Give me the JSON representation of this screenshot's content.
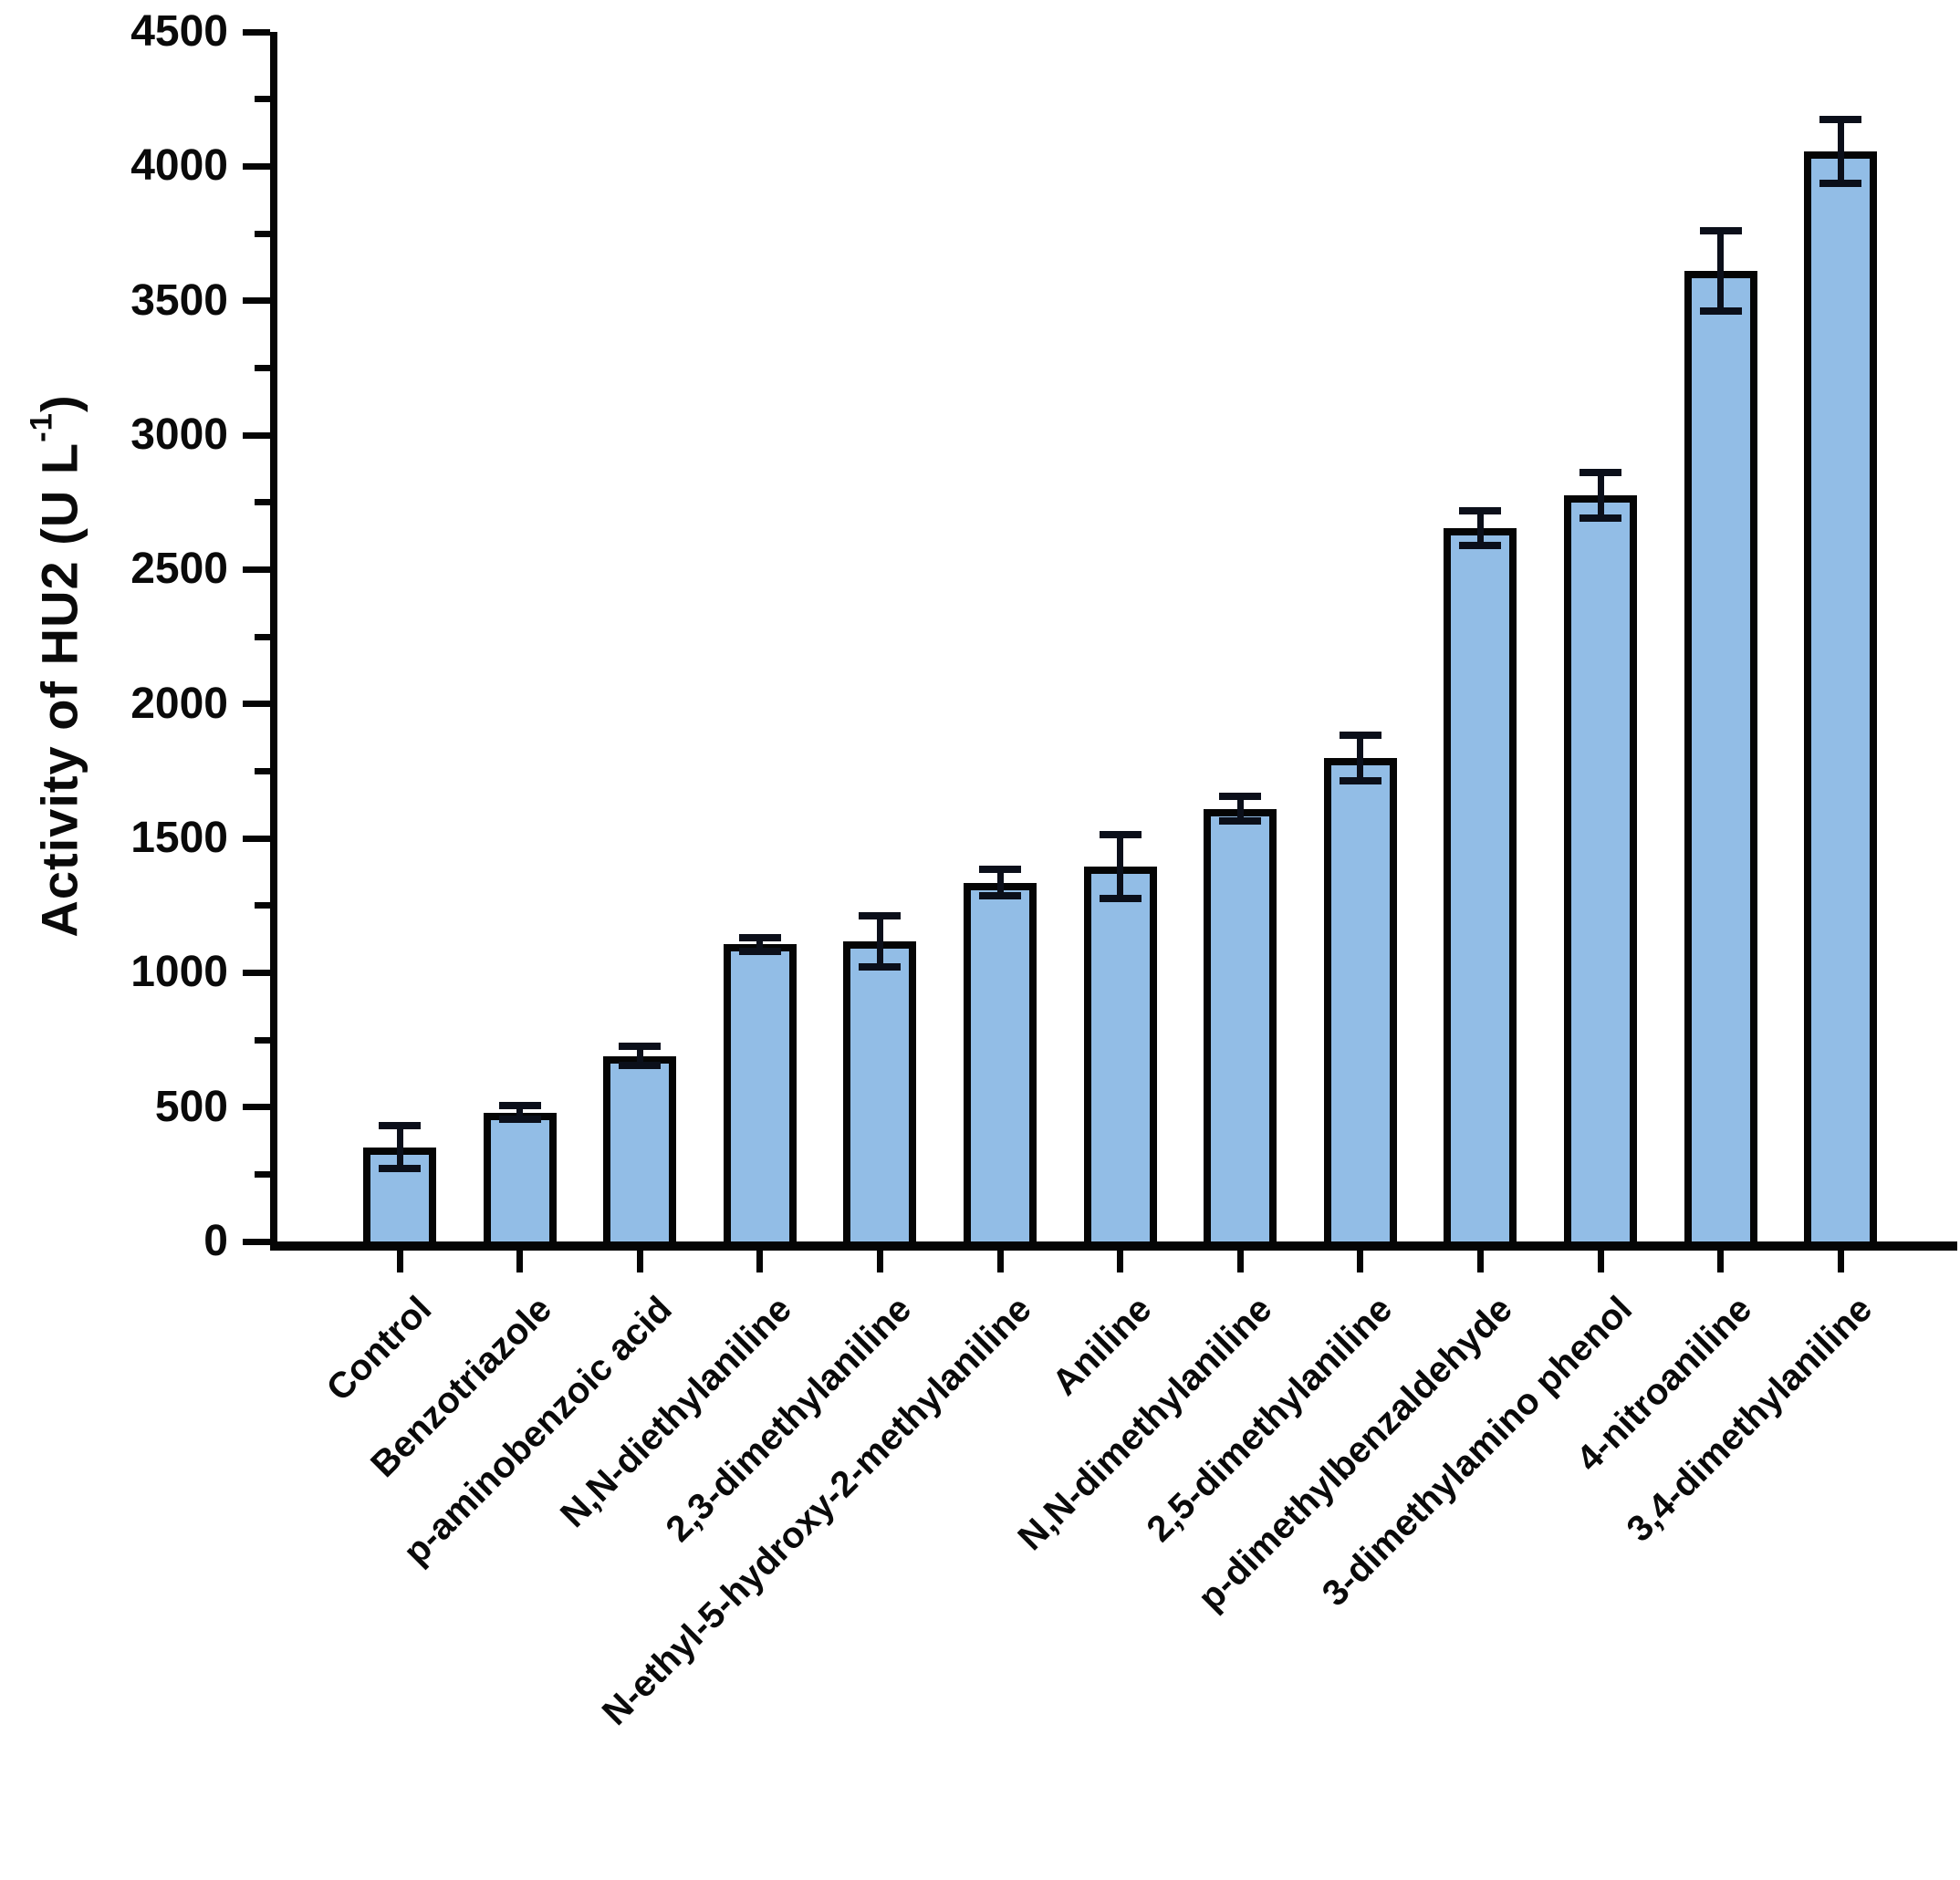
{
  "chart_data": {
    "type": "bar",
    "title": "",
    "xlabel": "",
    "ylabel": "Activity of HU2 (U L⁻¹)",
    "ylabel_parts": {
      "pre": "Activity of HU2 (U L",
      "sup": "-1",
      "post": ")"
    },
    "ylim": [
      0,
      4500
    ],
    "ytick_major_step": 500,
    "ytick_minor_step": 250,
    "ytick_labels": [
      "0",
      "500",
      "1000",
      "1500",
      "2000",
      "2500",
      "3000",
      "3500",
      "4000",
      "4500"
    ],
    "grid": false,
    "legend": null,
    "bar_color": "#92BDE6",
    "bar_border_color": "#050505",
    "error_bar_color": "#0b0f1a",
    "categories": [
      "Control",
      "Benzotriazole",
      "p-aminobenzoic acid",
      "N,N-diethylaniline",
      "2,3-dimethylaniline",
      "N-ethyl-5-hydroxy-2-methylaniline",
      "Aniline",
      "N,N-dimethylaniline",
      "2,5-dimethylaniline",
      "p-dimethylbenzaldehyde",
      "3-dimethylamino phenol",
      "4-nitroaniline",
      "3,4-dimethylaniline"
    ],
    "values": [
      350,
      480,
      690,
      1105,
      1115,
      1335,
      1395,
      1610,
      1800,
      2655,
      2775,
      3610,
      4055
    ],
    "errors": [
      80,
      25,
      35,
      25,
      95,
      50,
      120,
      45,
      85,
      65,
      85,
      150,
      120
    ]
  }
}
